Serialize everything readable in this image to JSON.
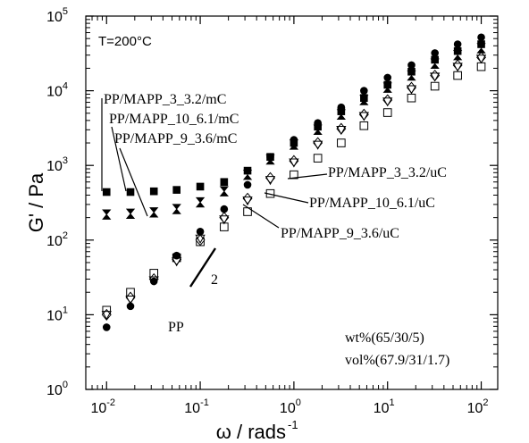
{
  "chart_data": {
    "type": "scatter",
    "title": "",
    "xlabel_base": "ω / rads",
    "xlabel_exp": "-1",
    "ylabel": "G' / Pa",
    "xscale": "log",
    "yscale": "log",
    "xlim": [
      0.006,
      150
    ],
    "ylim": [
      1,
      100000
    ],
    "x_ticks": [
      {
        "base": "10",
        "exp": "-2"
      },
      {
        "base": "10",
        "exp": "-1"
      },
      {
        "base": "10",
        "exp": "0"
      },
      {
        "base": "10",
        "exp": "1"
      },
      {
        "base": "10",
        "exp": "2"
      }
    ],
    "y_ticks": [
      {
        "base": "10",
        "exp": "0"
      },
      {
        "base": "10",
        "exp": "1"
      },
      {
        "base": "10",
        "exp": "2"
      },
      {
        "base": "10",
        "exp": "3"
      },
      {
        "base": "10",
        "exp": "4"
      },
      {
        "base": "10",
        "exp": "5"
      }
    ],
    "annotations": {
      "temperature": "T=200°C",
      "wt": "wt%(65/30/5)",
      "vol": "vol%(67.9/31/1.7)",
      "slope": "2",
      "pp": "PP",
      "mc_3": "PP/MAPP_3_3.2/mC",
      "mc_10": "PP/MAPP_10_6.1/mC",
      "mc_9": "PP/MAPP_9_3.6/mC",
      "uc_3": "PP/MAPP_3_3.2/uC",
      "uc_10": "PP/MAPP_10_6.1/uC",
      "uc_9": "PP/MAPP_9_3.6/uC"
    },
    "series": [
      {
        "marker": "circle-filled",
        "x": [
          0.01,
          0.018,
          0.032,
          0.056,
          0.1,
          0.18,
          0.32,
          0.56,
          1,
          1.8,
          3.2,
          5.6,
          10,
          18,
          32,
          56,
          100
        ],
        "y": [
          6.8,
          13,
          28,
          62,
          130,
          260,
          550,
          1300,
          2200,
          3700,
          6000,
          10000,
          15000,
          22000,
          32000,
          42000,
          52000
        ]
      },
      {
        "marker": "square-filled",
        "x": [
          0.01,
          0.018,
          0.032,
          0.056,
          0.1,
          0.18,
          0.32,
          0.56,
          1,
          1.8,
          3.2,
          5.6,
          10,
          18,
          32,
          56,
          100
        ],
        "y": [
          440,
          440,
          450,
          470,
          520,
          600,
          850,
          1300,
          2000,
          3300,
          5300,
          8000,
          12000,
          18000,
          26000,
          34000,
          42000
        ]
      },
      {
        "marker": "bowtie-filled",
        "x": [
          0.01,
          0.018,
          0.032,
          0.056,
          0.1,
          0.18,
          0.32,
          0.56,
          1,
          1.8,
          3.2,
          5.6,
          10,
          18,
          32,
          56,
          100
        ],
        "y": [
          220,
          225,
          235,
          260,
          320,
          450,
          750,
          1200,
          1900,
          3000,
          4800,
          7500,
          11000,
          16000,
          23000,
          30000,
          37000
        ]
      },
      {
        "marker": "square-open",
        "x": [
          0.01,
          0.018,
          0.032,
          0.056,
          0.1,
          0.18,
          0.32,
          0.56,
          1,
          1.8,
          3.2,
          5.6,
          10,
          18,
          32,
          56,
          100
        ],
        "y": [
          11.5,
          20,
          36,
          58,
          95,
          150,
          240,
          420,
          750,
          1250,
          2000,
          3400,
          5100,
          8000,
          11500,
          16000,
          21000
        ]
      },
      {
        "marker": "diamond-open",
        "x": [
          0.01,
          0.018,
          0.032,
          0.056,
          0.1,
          0.18,
          0.32,
          0.56,
          1,
          1.8,
          3.2,
          5.6,
          10,
          18,
          32,
          56,
          100
        ],
        "y": [
          10,
          17,
          30,
          55,
          100,
          200,
          360,
          680,
          1150,
          2000,
          3100,
          4800,
          7500,
          11000,
          16000,
          22000,
          28000
        ]
      },
      {
        "marker": "triangle-open",
        "x": [
          0.01,
          0.018,
          0.032,
          0.056,
          0.1,
          0.18,
          0.32,
          0.56,
          1,
          1.8,
          3.2,
          5.6,
          10,
          18,
          32,
          56,
          100
        ],
        "y": [
          10,
          16,
          29,
          52,
          105,
          190,
          340,
          640,
          1100,
          1900,
          3000,
          4600,
          7200,
          10500,
          15500,
          21000,
          27000
        ]
      }
    ]
  }
}
